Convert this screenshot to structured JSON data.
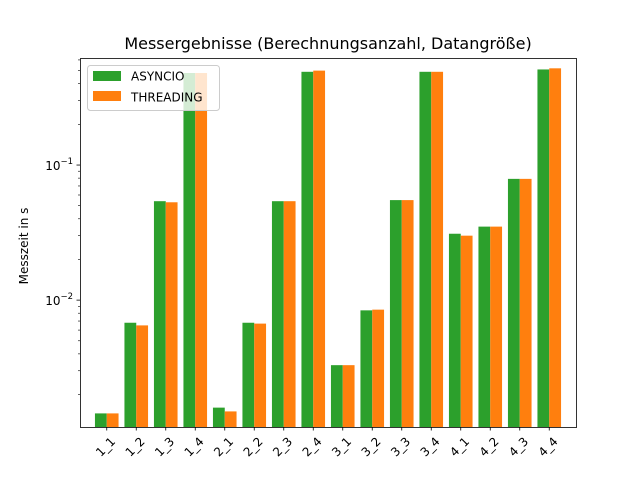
{
  "chart_data": {
    "type": "bar",
    "title": "Messergebnisse (Berechnungsanzahl, Datangröße)",
    "xlabel": "",
    "ylabel": "Messzeit in s",
    "yscale": "log",
    "ylim": [
      0.00115,
      0.62
    ],
    "grid": false,
    "legend_position": "top-left",
    "categories": [
      "1_1",
      "1_2",
      "1_3",
      "1_4",
      "2_1",
      "2_2",
      "2_3",
      "2_4",
      "3_1",
      "3_2",
      "3_3",
      "3_4",
      "4_1",
      "4_2",
      "4_3",
      "4_4"
    ],
    "y_ticks": [
      {
        "value": 0.01,
        "base": "10",
        "exp": "−2"
      },
      {
        "value": 0.1,
        "base": "10",
        "exp": "−1"
      }
    ],
    "series": [
      {
        "name": "ASYNCIO",
        "color": "#2ca02c",
        "values": [
          0.00145,
          0.0068,
          0.054,
          0.48,
          0.0016,
          0.0068,
          0.054,
          0.49,
          0.0033,
          0.0084,
          0.055,
          0.49,
          0.031,
          0.035,
          0.079,
          0.51
        ]
      },
      {
        "name": "THREADING",
        "color": "#ff7f0e",
        "values": [
          0.00145,
          0.0065,
          0.053,
          0.48,
          0.0015,
          0.0067,
          0.054,
          0.5,
          0.0033,
          0.0085,
          0.055,
          0.49,
          0.03,
          0.035,
          0.079,
          0.52
        ]
      }
    ]
  }
}
